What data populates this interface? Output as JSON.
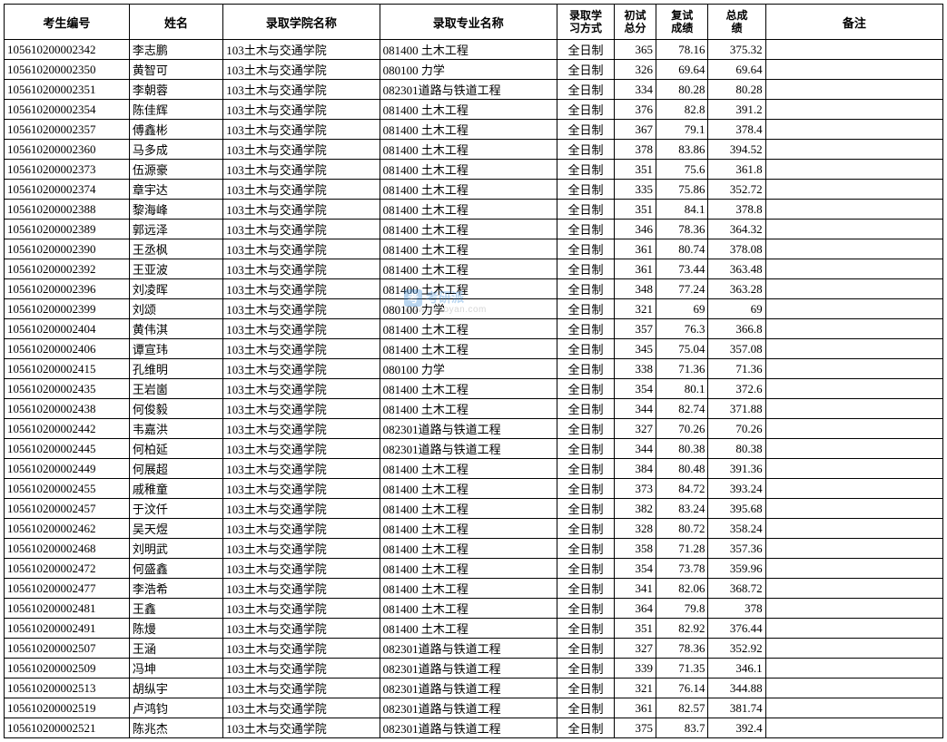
{
  "table": {
    "columns": [
      {
        "key": "id",
        "label": "考生编号",
        "class": "col-id",
        "align": "left"
      },
      {
        "key": "name",
        "label": "姓名",
        "class": "col-name",
        "align": "left"
      },
      {
        "key": "coll",
        "label": "录取学院名称",
        "class": "col-coll",
        "align": "left"
      },
      {
        "key": "major",
        "label": "录取专业名称",
        "class": "col-major",
        "align": "left"
      },
      {
        "key": "mode",
        "label": "录取学\n习方式",
        "class": "col-mode",
        "align": "left"
      },
      {
        "key": "prelim",
        "label": "初试\n总分",
        "class": "col-prelim",
        "align": "right"
      },
      {
        "key": "retest",
        "label": "复试\n成绩",
        "class": "col-retest",
        "align": "right"
      },
      {
        "key": "total",
        "label": "总成\n绩",
        "class": "col-total",
        "align": "right"
      },
      {
        "key": "note",
        "label": "备注",
        "class": "col-note",
        "align": "left"
      }
    ],
    "rows": [
      [
        "105610200002342",
        "李志鹏",
        "103土木与交通学院",
        "081400 土木工程",
        "全日制",
        "365",
        "78.16",
        "375.32",
        ""
      ],
      [
        "105610200002350",
        "黄智可",
        "103土木与交通学院",
        "080100 力学",
        "全日制",
        "326",
        "69.64",
        "69.64",
        ""
      ],
      [
        "105610200002351",
        "李朝蓉",
        "103土木与交通学院",
        "082301道路与铁道工程",
        "全日制",
        "334",
        "80.28",
        "80.28",
        ""
      ],
      [
        "105610200002354",
        "陈佳辉",
        "103土木与交通学院",
        "081400 土木工程",
        "全日制",
        "376",
        "82.8",
        "391.2",
        ""
      ],
      [
        "105610200002357",
        "傅鑫彬",
        "103土木与交通学院",
        "081400 土木工程",
        "全日制",
        "367",
        "79.1",
        "378.4",
        ""
      ],
      [
        "105610200002360",
        "马多成",
        "103土木与交通学院",
        "081400 土木工程",
        "全日制",
        "378",
        "83.86",
        "394.52",
        ""
      ],
      [
        "105610200002373",
        "伍源豪",
        "103土木与交通学院",
        "081400 土木工程",
        "全日制",
        "351",
        "75.6",
        "361.8",
        ""
      ],
      [
        "105610200002374",
        "章宇达",
        "103土木与交通学院",
        "081400 土木工程",
        "全日制",
        "335",
        "75.86",
        "352.72",
        ""
      ],
      [
        "105610200002388",
        "黎海峰",
        "103土木与交通学院",
        "081400 土木工程",
        "全日制",
        "351",
        "84.1",
        "378.8",
        ""
      ],
      [
        "105610200002389",
        "郭远泽",
        "103土木与交通学院",
        "081400 土木工程",
        "全日制",
        "346",
        "78.36",
        "364.32",
        ""
      ],
      [
        "105610200002390",
        "王丞枫",
        "103土木与交通学院",
        "081400 土木工程",
        "全日制",
        "361",
        "80.74",
        "378.08",
        ""
      ],
      [
        "105610200002392",
        "王亚波",
        "103土木与交通学院",
        "081400 土木工程",
        "全日制",
        "361",
        "73.44",
        "363.48",
        ""
      ],
      [
        "105610200002396",
        "刘凌晖",
        "103土木与交通学院",
        "081400 土木工程",
        "全日制",
        "348",
        "77.24",
        "363.28",
        ""
      ],
      [
        "105610200002399",
        "刘颂",
        "103土木与交通学院",
        "080100 力学",
        "全日制",
        "321",
        "69",
        "69",
        ""
      ],
      [
        "105610200002404",
        "黄伟淇",
        "103土木与交通学院",
        "081400 土木工程",
        "全日制",
        "357",
        "76.3",
        "366.8",
        ""
      ],
      [
        "105610200002406",
        "谭宣玮",
        "103土木与交通学院",
        "081400 土木工程",
        "全日制",
        "345",
        "75.04",
        "357.08",
        ""
      ],
      [
        "105610200002415",
        "孔维明",
        "103土木与交通学院",
        "080100 力学",
        "全日制",
        "338",
        "71.36",
        "71.36",
        ""
      ],
      [
        "105610200002435",
        "王岩崮",
        "103土木与交通学院",
        "081400 土木工程",
        "全日制",
        "354",
        "80.1",
        "372.6",
        ""
      ],
      [
        "105610200002438",
        "何俊毅",
        "103土木与交通学院",
        "081400 土木工程",
        "全日制",
        "344",
        "82.74",
        "371.88",
        ""
      ],
      [
        "105610200002442",
        "韦嘉洪",
        "103土木与交通学院",
        "082301道路与铁道工程",
        "全日制",
        "327",
        "70.26",
        "70.26",
        ""
      ],
      [
        "105610200002445",
        "何柏延",
        "103土木与交通学院",
        "082301道路与铁道工程",
        "全日制",
        "344",
        "80.38",
        "80.38",
        ""
      ],
      [
        "105610200002449",
        "何展超",
        "103土木与交通学院",
        "081400 土木工程",
        "全日制",
        "384",
        "80.48",
        "391.36",
        ""
      ],
      [
        "105610200002455",
        "戚稚童",
        "103土木与交通学院",
        "081400 土木工程",
        "全日制",
        "373",
        "84.72",
        "393.24",
        ""
      ],
      [
        "105610200002457",
        "于汶仟",
        "103土木与交通学院",
        "081400 土木工程",
        "全日制",
        "382",
        "83.24",
        "395.68",
        ""
      ],
      [
        "105610200002462",
        "吴天煜",
        "103土木与交通学院",
        "081400 土木工程",
        "全日制",
        "328",
        "80.72",
        "358.24",
        ""
      ],
      [
        "105610200002468",
        "刘明武",
        "103土木与交通学院",
        "081400 土木工程",
        "全日制",
        "358",
        "71.28",
        "357.36",
        ""
      ],
      [
        "105610200002472",
        "何盛鑫",
        "103土木与交通学院",
        "081400 土木工程",
        "全日制",
        "354",
        "73.78",
        "359.96",
        ""
      ],
      [
        "105610200002477",
        "李浩希",
        "103土木与交通学院",
        "081400 土木工程",
        "全日制",
        "341",
        "82.06",
        "368.72",
        ""
      ],
      [
        "105610200002481",
        "王鑫",
        "103土木与交通学院",
        "081400 土木工程",
        "全日制",
        "364",
        "79.8",
        "378",
        ""
      ],
      [
        "105610200002491",
        "陈熳",
        "103土木与交通学院",
        "081400 土木工程",
        "全日制",
        "351",
        "82.92",
        "376.44",
        ""
      ],
      [
        "105610200002507",
        "王涵",
        "103土木与交通学院",
        "082301道路与铁道工程",
        "全日制",
        "327",
        "78.36",
        "352.92",
        ""
      ],
      [
        "105610200002509",
        "冯坤",
        "103土木与交通学院",
        "082301道路与铁道工程",
        "全日制",
        "339",
        "71.35",
        "346.1",
        ""
      ],
      [
        "105610200002513",
        "胡纵宇",
        "103土木与交通学院",
        "082301道路与铁道工程",
        "全日制",
        "321",
        "76.14",
        "344.88",
        ""
      ],
      [
        "105610200002519",
        "卢鸿钧",
        "103土木与交通学院",
        "082301道路与铁道工程",
        "全日制",
        "361",
        "82.57",
        "381.74",
        ""
      ],
      [
        "105610200002521",
        "陈兆杰",
        "103土木与交通学院",
        "082301道路与铁道工程",
        "全日制",
        "375",
        "83.7",
        "392.4",
        ""
      ]
    ],
    "header_fontsize": 13,
    "body_fontsize": 13,
    "border_color": "#000000",
    "background_color": "#ffffff",
    "text_color": "#000000"
  },
  "watermark": {
    "badge": "考",
    "text": "考研派",
    "url": "www.okaoyan.com",
    "badge_bg": "#3b8bd6",
    "text_color": "#3b8bd6"
  }
}
